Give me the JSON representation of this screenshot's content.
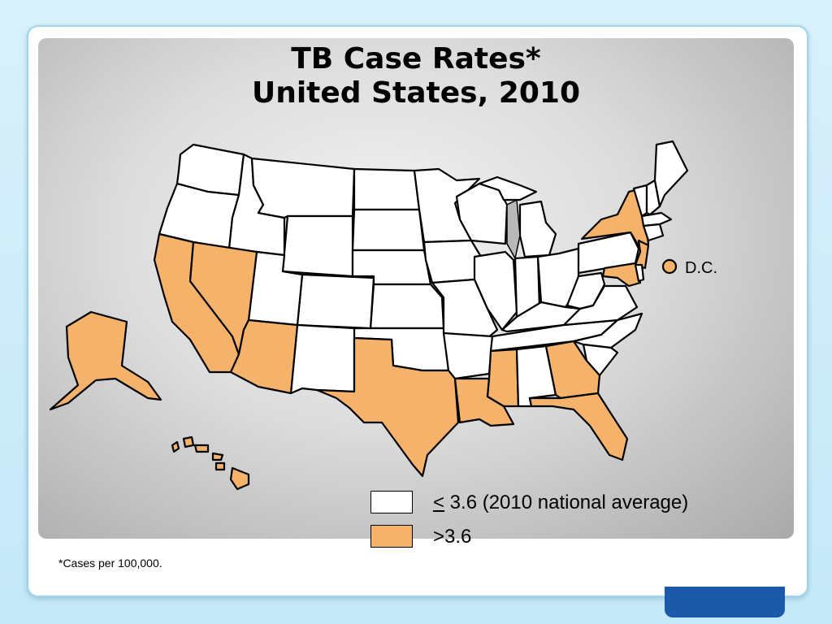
{
  "title": {
    "line1": "TB Case Rates*",
    "line2": "United States, 2010"
  },
  "colors": {
    "above": "#f5b26b",
    "below": "#ffffff",
    "outline": "#000000"
  },
  "legend": {
    "below": {
      "symbol": "<",
      "text": " 3.6 (2010 national average)"
    },
    "above": {
      "text": ">3.6"
    }
  },
  "dc": {
    "label": "D.C."
  },
  "footnote": "*Cases per 100,000.",
  "states_above_average": [
    "California",
    "Nevada",
    "Arizona",
    "Texas",
    "Louisiana",
    "Mississippi",
    "Georgia",
    "Florida",
    "New York",
    "New Jersey",
    "Maryland",
    "Alaska",
    "Hawaii",
    "D.C."
  ]
}
